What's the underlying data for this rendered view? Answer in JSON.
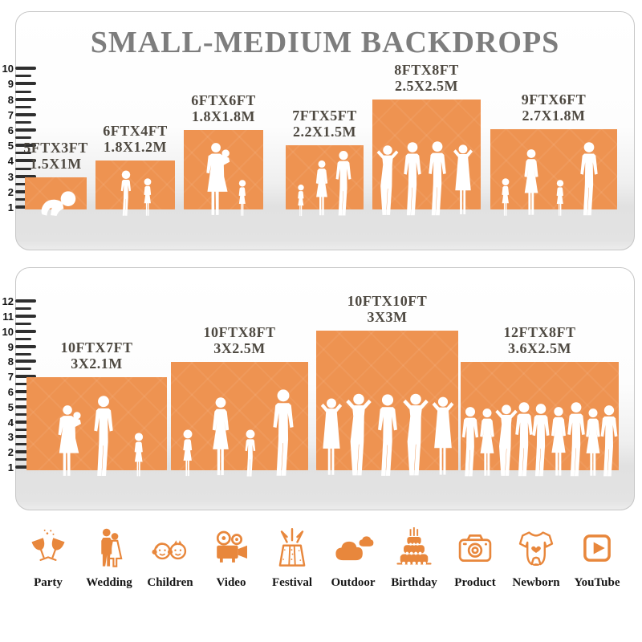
{
  "title": "SMALL-MEDIUM BACKDROPS",
  "colors": {
    "backdrop_orange": "#EE9351",
    "icon_orange": "#E8873C",
    "title_gray": "#7D7D7D",
    "label_gray": "#4E4941"
  },
  "panels": [
    {
      "name": "small-medium-top",
      "ruler": {
        "min": 1,
        "max": 10,
        "tick_labels": [
          "10",
          "9",
          "8",
          "7",
          "6",
          "5",
          "4",
          "3",
          "2",
          "1"
        ]
      },
      "backdrops": [
        {
          "line1": "5FTX3FT",
          "line2": "1.5X1M",
          "figures": [
            "baby"
          ]
        },
        {
          "line1": "6FTX4FT",
          "line2": "1.8X1.2M",
          "figures": [
            "boy",
            "girl"
          ]
        },
        {
          "line1": "6FTX6FT",
          "line2": "1.8X1.8M",
          "figures": [
            "woman-baby",
            "girl"
          ]
        },
        {
          "line1": "7FTX5FT",
          "line2": "2.2X1.5M",
          "figures": [
            "girl",
            "woman",
            "man"
          ]
        },
        {
          "line1": "8FTX8FT",
          "line2": "2.5X2.5M",
          "figures": [
            "man-pose",
            "man",
            "man",
            "woman-pose"
          ]
        },
        {
          "line1": "9FTX6FT",
          "line2": "2.7X1.8M",
          "figures": [
            "girl",
            "woman",
            "girl",
            "man"
          ]
        }
      ]
    },
    {
      "name": "small-medium-bottom",
      "ruler": {
        "min": 1,
        "max": 12,
        "tick_labels": [
          "12",
          "11",
          "10",
          "9",
          "8",
          "7",
          "6",
          "5",
          "4",
          "3",
          "2",
          "1"
        ]
      },
      "backdrops": [
        {
          "line1": "10FTX7FT",
          "line2": "3X2.1M",
          "figures": [
            "woman-baby",
            "man",
            "girl"
          ]
        },
        {
          "line1": "10FTX8FT",
          "line2": "3X2.5M",
          "figures": [
            "girl",
            "woman",
            "boy",
            "man"
          ]
        },
        {
          "line1": "10FTX10FT",
          "line2": "3X3M",
          "figures": [
            "woman-pose",
            "man-pose",
            "man",
            "man-pose",
            "woman-pose"
          ]
        },
        {
          "line1": "12FTX8FT",
          "line2": "3.6X2.5M",
          "figures": [
            "man",
            "woman",
            "man-pose",
            "man",
            "man",
            "woman",
            "man",
            "woman",
            "man"
          ]
        }
      ]
    }
  ],
  "categories": [
    {
      "label": "Party",
      "icon": "party-icon"
    },
    {
      "label": "Wedding",
      "icon": "wedding-icon"
    },
    {
      "label": "Children",
      "icon": "children-icon"
    },
    {
      "label": "Video",
      "icon": "video-icon"
    },
    {
      "label": "Festival",
      "icon": "festival-icon"
    },
    {
      "label": "Outdoor",
      "icon": "outdoor-icon"
    },
    {
      "label": "Birthday",
      "icon": "birthday-icon"
    },
    {
      "label": "Product",
      "icon": "product-icon"
    },
    {
      "label": "Newborn",
      "icon": "newborn-icon"
    },
    {
      "label": "YouTube",
      "icon": "youtube-icon"
    }
  ]
}
